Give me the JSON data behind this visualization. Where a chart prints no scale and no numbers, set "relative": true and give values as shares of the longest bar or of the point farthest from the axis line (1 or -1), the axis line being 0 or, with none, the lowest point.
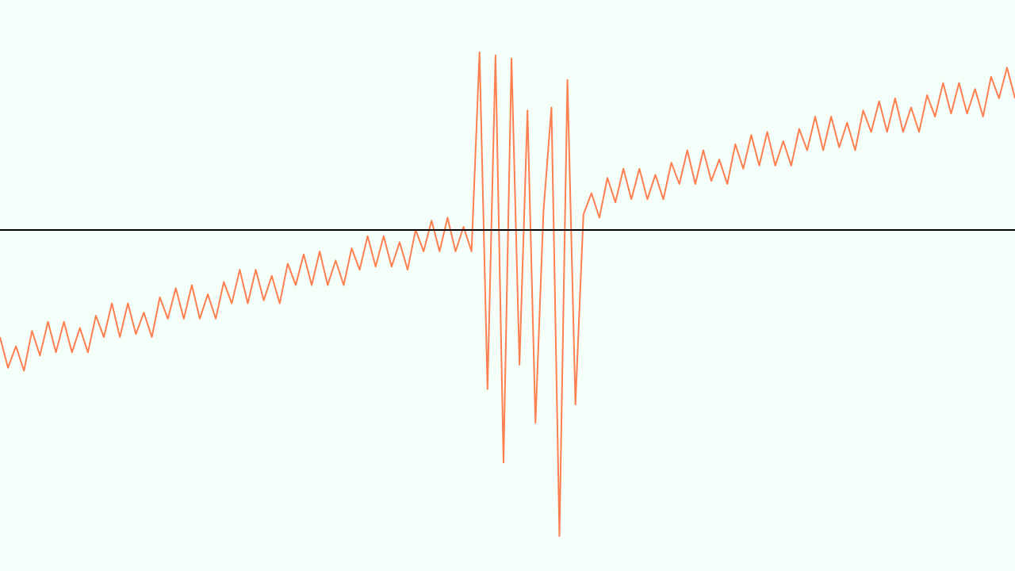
{
  "chart_data": {
    "type": "line",
    "relative": true,
    "marker": "none",
    "line_style": "solid",
    "categories": [
      null,
      null,
      null,
      null,
      null,
      null,
      null,
      null,
      null,
      null,
      null,
      null,
      null,
      null,
      null,
      null,
      null,
      null,
      null,
      null,
      null,
      null,
      null,
      null,
      null,
      null,
      null,
      null,
      null,
      null,
      null,
      null,
      null,
      null,
      null,
      null,
      null,
      null,
      null,
      null,
      null,
      null,
      null,
      null,
      null,
      null,
      null,
      null,
      null,
      null,
      null,
      null,
      null,
      null,
      null,
      null,
      null,
      null,
      null,
      null,
      null,
      null,
      null,
      null,
      null,
      null,
      null,
      null,
      null,
      null,
      null,
      null,
      null,
      null,
      null,
      null,
      null,
      null,
      null,
      null,
      null,
      null,
      null,
      null,
      null,
      null,
      null,
      null,
      null,
      null,
      null,
      null,
      null,
      null,
      null,
      null,
      null,
      null,
      null,
      null,
      null,
      null,
      null,
      null,
      null,
      null,
      null,
      null,
      null,
      null,
      null,
      null,
      null,
      null,
      null,
      null,
      null,
      null,
      null,
      null,
      null,
      null,
      null,
      null,
      null,
      null,
      null,
      null
    ],
    "series": [
      {
        "color": "#ff7f50",
        "values": [
          -0.35,
          -0.45,
          -0.38,
          -0.46,
          -0.33,
          -0.41,
          -0.3,
          -0.4,
          -0.3,
          -0.4,
          -0.32,
          -0.4,
          -0.28,
          -0.35,
          -0.24,
          -0.35,
          -0.24,
          -0.34,
          -0.27,
          -0.35,
          -0.22,
          -0.29,
          -0.19,
          -0.29,
          -0.18,
          -0.29,
          -0.21,
          -0.29,
          -0.17,
          -0.24,
          -0.13,
          -0.24,
          -0.13,
          -0.23,
          -0.15,
          -0.24,
          -0.11,
          -0.18,
          -0.08,
          -0.18,
          -0.07,
          -0.18,
          -0.1,
          -0.18,
          -0.06,
          -0.13,
          -0.02,
          -0.12,
          -0.02,
          -0.12,
          -0.04,
          -0.13,
          0.0,
          -0.07,
          0.03,
          -0.07,
          0.04,
          -0.07,
          0.01,
          -0.07,
          0.58,
          -0.52,
          0.57,
          -0.76,
          0.56,
          -0.44,
          0.39,
          -0.63,
          0.06,
          0.4,
          -1,
          0.49,
          -0.57,
          0.05,
          0.12,
          0.04,
          0.17,
          0.09,
          0.2,
          0.1,
          0.2,
          0.1,
          0.18,
          0.1,
          0.22,
          0.15,
          0.26,
          0.15,
          0.26,
          0.16,
          0.23,
          0.15,
          0.28,
          0.2,
          0.31,
          0.21,
          0.32,
          0.21,
          0.29,
          0.21,
          0.33,
          0.26,
          0.37,
          0.26,
          0.37,
          0.27,
          0.35,
          0.26,
          0.39,
          0.32,
          0.42,
          0.32,
          0.43,
          0.32,
          0.4,
          0.32,
          0.44,
          0.37,
          0.48,
          0.38,
          0.48,
          0.38,
          0.46,
          0.37,
          0.5,
          0.43,
          0.53,
          0.43
        ]
      }
    ]
  }
}
